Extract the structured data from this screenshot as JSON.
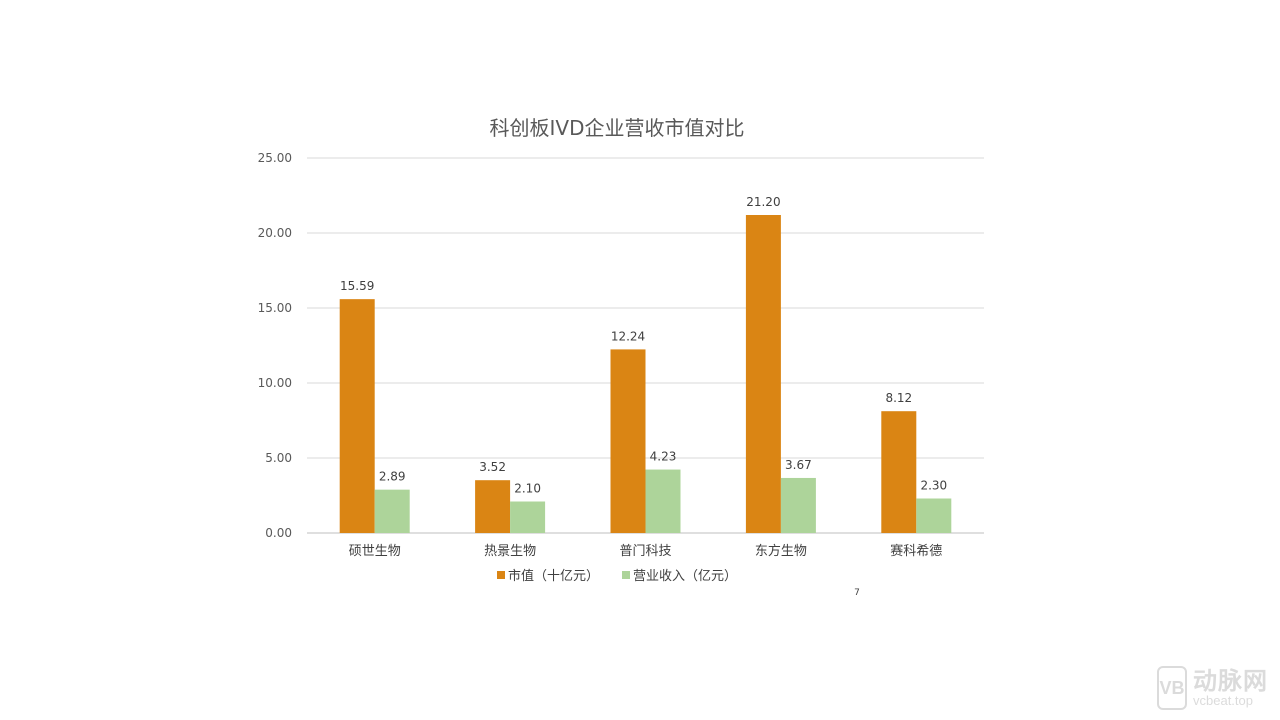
{
  "chart_data": {
    "type": "bar",
    "title": "科创板IVD企业营收市值对比",
    "categories": [
      "硕世生物",
      "热景生物",
      "普门科技",
      "东方生物",
      "赛科希德"
    ],
    "series": [
      {
        "name": "市值（十亿元）",
        "values": [
          15.59,
          3.52,
          12.24,
          21.2,
          8.12
        ],
        "color": "#DA8514"
      },
      {
        "name": "营业收入（亿元）",
        "values": [
          2.89,
          2.1,
          4.23,
          3.67,
          2.3
        ],
        "color": "#ADD49A"
      }
    ],
    "data_labels": [
      [
        "15.59",
        "3.52",
        "12.24",
        "21.20",
        "8.12"
      ],
      [
        "2.89",
        "2.10",
        "4.23",
        "3.67",
        "2.30"
      ]
    ],
    "ylim": [
      0,
      25
    ],
    "yticks": [
      "0.00",
      "5.00",
      "10.00",
      "15.00",
      "20.00",
      "25.00"
    ],
    "grid": true,
    "legend_position": "bottom",
    "gridline_color": "#d9d9d9"
  },
  "page": {
    "page_number": "7"
  },
  "watermark": {
    "logo_letter": "VB",
    "name": "动脉网",
    "url": "vcbeat.top"
  }
}
